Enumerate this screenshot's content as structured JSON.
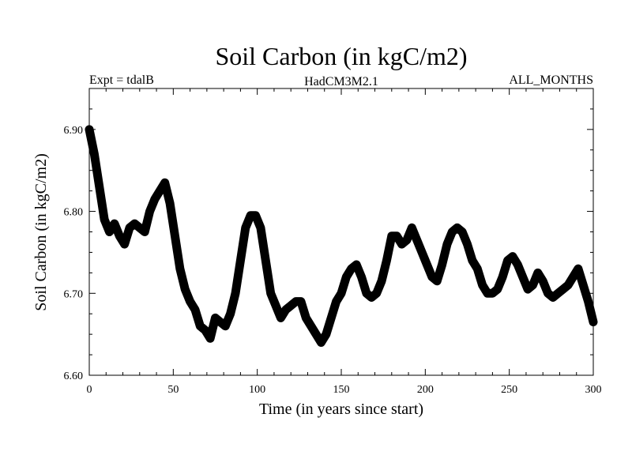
{
  "chart_data": {
    "type": "line",
    "title": "Soil Carbon (in kgC/m2)",
    "left_label": "Expt = tdalB",
    "center_label": "HadCM3M2.1",
    "right_label": "ALL_MONTHS",
    "xlabel": "Time (in years since start)",
    "ylabel": "Soil Carbon (in kgC/m2)",
    "xlim": [
      0,
      300
    ],
    "ylim": [
      6.6,
      6.95
    ],
    "x_ticks": [
      0,
      50,
      100,
      150,
      200,
      250,
      300
    ],
    "x_tick_labels": [
      "0",
      "50",
      "100",
      "150",
      "200",
      "250",
      "300"
    ],
    "y_ticks": [
      6.6,
      6.7,
      6.8,
      6.9
    ],
    "y_tick_labels": [
      "6.60",
      "6.70",
      "6.80",
      "6.90"
    ],
    "grid": false,
    "series": [
      {
        "name": "Soil Carbon",
        "x": [
          0,
          3,
          6,
          9,
          12,
          15,
          18,
          21,
          24,
          27,
          30,
          33,
          36,
          39,
          42,
          45,
          48,
          51,
          54,
          57,
          60,
          63,
          66,
          69,
          72,
          75,
          78,
          81,
          84,
          87,
          90,
          93,
          96,
          99,
          102,
          105,
          108,
          111,
          114,
          117,
          120,
          123,
          126,
          129,
          132,
          135,
          138,
          141,
          144,
          147,
          150,
          153,
          156,
          159,
          162,
          165,
          168,
          171,
          174,
          177,
          180,
          183,
          186,
          189,
          192,
          195,
          198,
          201,
          204,
          207,
          210,
          213,
          216,
          219,
          222,
          225,
          228,
          231,
          234,
          237,
          240,
          243,
          246,
          249,
          252,
          255,
          258,
          261,
          264,
          267,
          270,
          273,
          276,
          279,
          282,
          285,
          288,
          291,
          294,
          297,
          300
        ],
        "y": [
          6.9,
          6.87,
          6.83,
          6.79,
          6.775,
          6.785,
          6.77,
          6.76,
          6.78,
          6.785,
          6.78,
          6.775,
          6.8,
          6.815,
          6.825,
          6.835,
          6.81,
          6.77,
          6.73,
          6.705,
          6.69,
          6.68,
          6.66,
          6.655,
          6.645,
          6.67,
          6.665,
          6.66,
          6.675,
          6.7,
          6.74,
          6.78,
          6.795,
          6.795,
          6.78,
          6.74,
          6.7,
          6.685,
          6.67,
          6.68,
          6.685,
          6.69,
          6.69,
          6.67,
          6.66,
          6.65,
          6.64,
          6.65,
          6.67,
          6.69,
          6.7,
          6.72,
          6.73,
          6.735,
          6.72,
          6.7,
          6.695,
          6.7,
          6.715,
          6.74,
          6.77,
          6.77,
          6.76,
          6.765,
          6.78,
          6.765,
          6.75,
          6.735,
          6.72,
          6.715,
          6.735,
          6.76,
          6.775,
          6.78,
          6.775,
          6.76,
          6.74,
          6.73,
          6.71,
          6.7,
          6.7,
          6.705,
          6.72,
          6.74,
          6.745,
          6.735,
          6.72,
          6.705,
          6.71,
          6.725,
          6.715,
          6.7,
          6.695,
          6.7,
          6.705,
          6.71,
          6.72,
          6.73,
          6.71,
          6.69,
          6.665
        ]
      }
    ]
  }
}
